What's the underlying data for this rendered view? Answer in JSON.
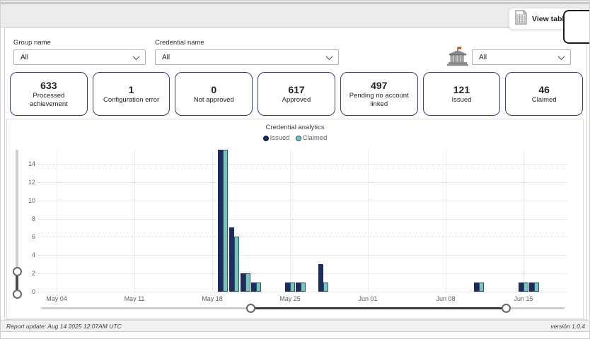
{
  "toolbar": {
    "view_table": "View table"
  },
  "filters": {
    "group": {
      "label": "Group name",
      "value": "All"
    },
    "credential": {
      "label": "Credential name",
      "value": "All"
    },
    "issuer": {
      "value": "All",
      "icon": "institution-building-icon"
    }
  },
  "kpis": [
    {
      "value": "633",
      "label": "Processed achievement"
    },
    {
      "value": "1",
      "label": "Configuration error"
    },
    {
      "value": "0",
      "label": "Not approved"
    },
    {
      "value": "617",
      "label": "Approved"
    },
    {
      "value": "497",
      "label": "Pending no account linked"
    },
    {
      "value": "121",
      "label": "Issued"
    },
    {
      "value": "46",
      "label": "Claimed"
    }
  ],
  "chart_data": {
    "type": "bar",
    "title": "Credential analytics",
    "legend_position": "top",
    "grid": true,
    "x_axis": {
      "tick_labels": [
        "May 04",
        "May 11",
        "May 18",
        "May 25",
        "Jun 01",
        "Jun 08",
        "Jun 15"
      ],
      "tick_unit_days": 7
    },
    "y_axis": {
      "tick_labels": [
        0,
        2,
        4,
        6,
        8,
        10,
        12,
        14
      ],
      "visible_max": 15.5
    },
    "series": [
      {
        "name": "Issued",
        "color": "#1f2b5b"
      },
      {
        "name": "Claimed",
        "color": "#7cc1bd",
        "outline": "#2a5560"
      }
    ],
    "points": [
      {
        "date": "May 19",
        "day_offset_from_first_tick": 15,
        "issued": 16,
        "claimed": 16,
        "clipped_at_top": true
      },
      {
        "date": "May 20",
        "day_offset_from_first_tick": 16,
        "issued": 7,
        "claimed": 6
      },
      {
        "date": "May 21",
        "day_offset_from_first_tick": 17,
        "issued": 2,
        "claimed": 2
      },
      {
        "date": "May 22",
        "day_offset_from_first_tick": 18,
        "issued": 1,
        "claimed": 1
      },
      {
        "date": "May 25",
        "day_offset_from_first_tick": 21,
        "issued": 1,
        "claimed": 1
      },
      {
        "date": "May 26",
        "day_offset_from_first_tick": 22,
        "issued": 1,
        "claimed": 1
      },
      {
        "date": "May 28",
        "day_offset_from_first_tick": 24,
        "issued": 3,
        "claimed": 1
      },
      {
        "date": "Jun 11",
        "day_offset_from_first_tick": 38,
        "issued": 1,
        "claimed": 1
      },
      {
        "date": "Jun 15",
        "day_offset_from_first_tick": 42,
        "issued": 1,
        "claimed": 1
      },
      {
        "date": "Jun 16",
        "day_offset_from_first_tick": 43,
        "issued": 1,
        "claimed": 1
      }
    ]
  },
  "sliders": {
    "vertical_zoom": {
      "range_fraction": [
        0,
        0.155
      ]
    },
    "horizontal_zoom": {
      "range_fraction": [
        0.401,
        0.889
      ]
    }
  },
  "footer": {
    "left": "Report update: Aug 14 2025 12:07AM UTC",
    "right": "versión 1.0.4"
  },
  "colors": {
    "issued": "#1f2b5b",
    "claimed_fill": "#7cc1bd",
    "claimed_outline": "#2a5560",
    "kpi_card_border": "#33417b"
  }
}
